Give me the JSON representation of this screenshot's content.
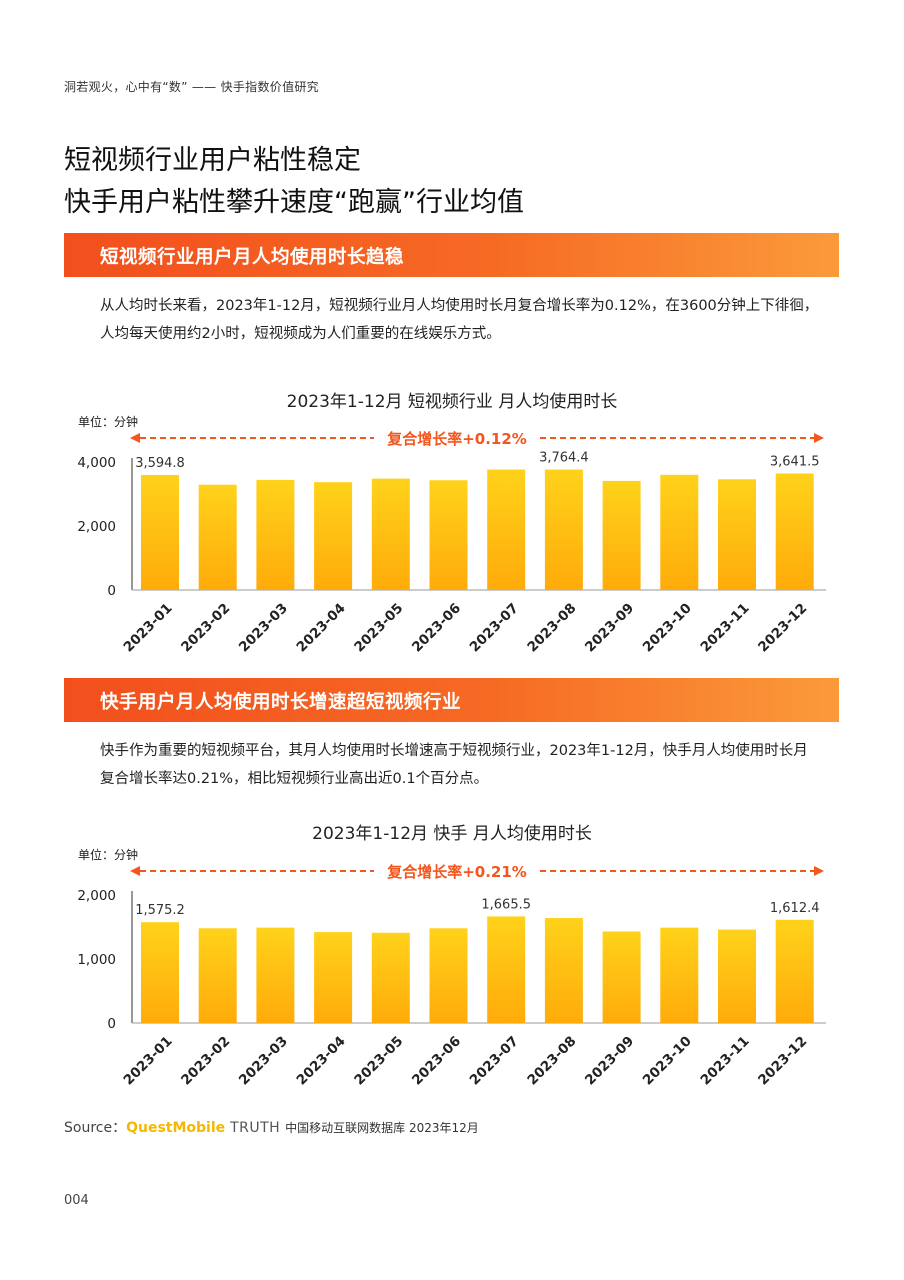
{
  "header": {
    "running_head": "洞若观火，心中有“数” —— 快手指数价值研究"
  },
  "title": {
    "line1": "短视频行业用户粘性稳定",
    "line2": "快手用户粘性攀升速度“跑赢”行业均值"
  },
  "section1": {
    "heading": "短视频行业用户月人均使用时长趋稳",
    "text": "从人均时长来看，2023年1-12月，短视频行业月人均使用时长月复合增长率为0.12%，在3600分钟上下徘徊，人均每天使用约2小时，短视频成为人们重要的在线娱乐方式。"
  },
  "section2": {
    "heading": "快手用户月人均使用时长增速超短视频行业",
    "text": "快手作为重要的短视频平台，其月人均使用时长增速高于短视频行业，2023年1-12月，快手月人均使用时长月复合增长率达0.21%，相比短视频行业高出近0.1个百分点。"
  },
  "chart_data": [
    {
      "type": "bar",
      "title": "2023年1-12月 短视频行业 月人均使用时长",
      "unit": "单位：分钟",
      "annotation": "复合增长率+0.12%",
      "categories": [
        "2023-01",
        "2023-02",
        "2023-03",
        "2023-04",
        "2023-05",
        "2023-06",
        "2023-07",
        "2023-08",
        "2023-09",
        "2023-10",
        "2023-11",
        "2023-12"
      ],
      "values": [
        3594.8,
        3290,
        3440,
        3370,
        3480,
        3430,
        3764.4,
        3764.4,
        3410,
        3600,
        3460,
        3641.5
      ],
      "data_labels": {
        "0": "3,594.8",
        "7": "3,764.4",
        "11": "3,641.5"
      },
      "yticks": [
        "0",
        "2,000",
        "4,000"
      ],
      "ytick_values": [
        0,
        2000,
        4000
      ],
      "ylim": [
        0,
        4000
      ],
      "colors": {
        "bar_top": "#ffd21a",
        "bar_bottom": "#ffab0a",
        "arrow": "#f3561e"
      }
    },
    {
      "type": "bar",
      "title": "2023年1-12月 快手 月人均使用时长",
      "unit": "单位：分钟",
      "annotation": "复合增长率+0.21%",
      "categories": [
        "2023-01",
        "2023-02",
        "2023-03",
        "2023-04",
        "2023-05",
        "2023-06",
        "2023-07",
        "2023-08",
        "2023-09",
        "2023-10",
        "2023-11",
        "2023-12"
      ],
      "values": [
        1575.2,
        1480,
        1490,
        1420,
        1410,
        1480,
        1665.5,
        1640,
        1430,
        1490,
        1460,
        1612.4
      ],
      "data_labels": {
        "0": "1,575.2",
        "6": "1,665.5",
        "11": "1,612.4"
      },
      "yticks": [
        "0",
        "1,000",
        "2,000"
      ],
      "ytick_values": [
        0,
        1000,
        2000
      ],
      "ylim": [
        0,
        2000
      ],
      "colors": {
        "bar_top": "#ffd21a",
        "bar_bottom": "#ffab0a",
        "arrow": "#f3561e"
      }
    }
  ],
  "footer": {
    "source_prefix": "Source：",
    "source_brand": "QuestMobile",
    "source_truth": " TRUTH ",
    "source_rest": "中国移动互联网数据库 2023年12月",
    "page_number": "004"
  }
}
